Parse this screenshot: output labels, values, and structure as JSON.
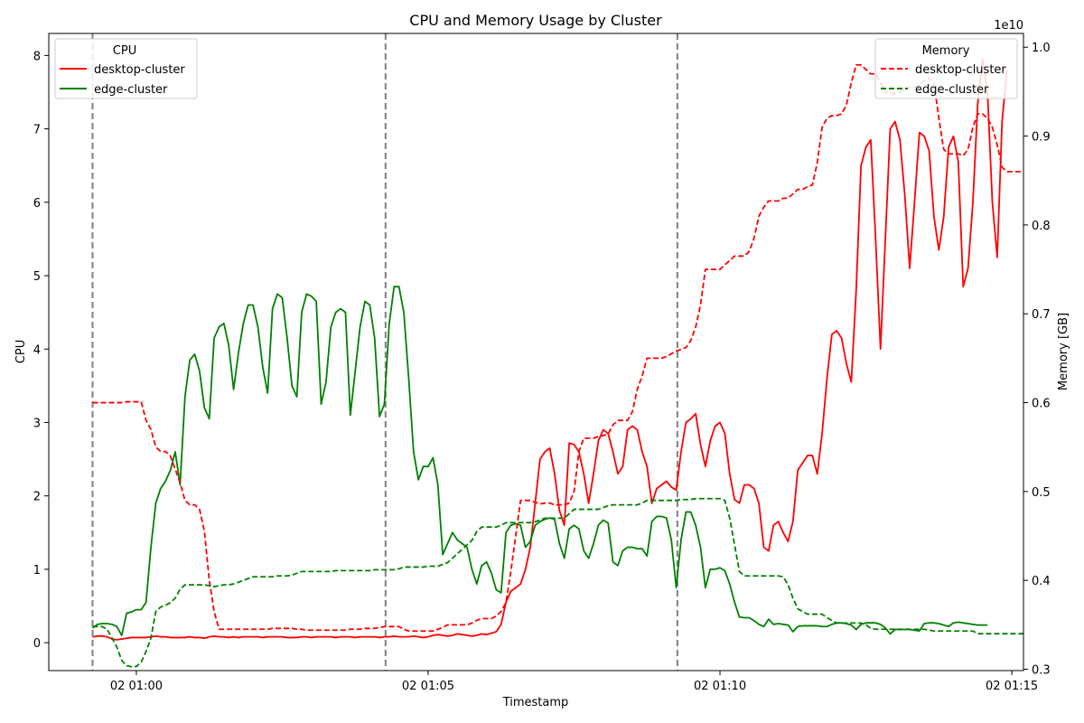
{
  "chart_data": {
    "type": "line",
    "title": "CPU and Memory Usage by Cluster",
    "xlabel": "Timestamp",
    "ylabel_left": "CPU",
    "ylabel_right": "Memory [GB]",
    "right_axis_offset_label": "1e10",
    "x_start": "02 00:59:15",
    "x_step_seconds": 5,
    "xlim_minutes": [
      -1.5,
      15.2
    ],
    "ylim_left": [
      -0.38,
      8.3
    ],
    "ylim_right": [
      0.2985,
      1.0155
    ],
    "x_ticks": [
      {
        "minute": 0,
        "label": "02 01:00"
      },
      {
        "minute": 5,
        "label": "02 01:05"
      },
      {
        "minute": 10,
        "label": "02 01:10"
      },
      {
        "minute": 15,
        "label": "02 01:15"
      }
    ],
    "y_ticks_left": [
      0,
      1,
      2,
      3,
      4,
      5,
      6,
      7,
      8
    ],
    "y_ticks_right": [
      0.3,
      0.4,
      0.5,
      0.6,
      0.7,
      0.8,
      0.9,
      1.0
    ],
    "vlines_minutes": [
      -0.75,
      4.27,
      9.27
    ],
    "colors": {
      "desktop": "#ff0000",
      "edge": "#008000",
      "vline": "#808080"
    },
    "legend_cpu": {
      "title": "CPU",
      "placement": "top-left",
      "entries": [
        "desktop-cluster",
        "edge-cluster"
      ]
    },
    "legend_memory": {
      "title": "Memory",
      "placement": "top-right",
      "entries": [
        "desktop-cluster",
        "edge-cluster"
      ]
    },
    "series": [
      {
        "name": "desktop-cluster",
        "axis": "CPU",
        "style": "solid",
        "color": "#ff0000",
        "values": [
          0.08,
          0.09,
          0.09,
          0.08,
          0.05,
          0.04,
          0.05,
          0.06,
          0.07,
          0.07,
          0.07,
          0.07,
          0.08,
          0.09,
          0.08,
          0.08,
          0.07,
          0.07,
          0.07,
          0.07,
          0.08,
          0.07,
          0.07,
          0.06,
          0.08,
          0.09,
          0.08,
          0.08,
          0.07,
          0.08,
          0.07,
          0.08,
          0.08,
          0.08,
          0.08,
          0.07,
          0.08,
          0.08,
          0.08,
          0.08,
          0.07,
          0.07,
          0.07,
          0.08,
          0.08,
          0.07,
          0.08,
          0.08,
          0.08,
          0.08,
          0.07,
          0.08,
          0.08,
          0.08,
          0.07,
          0.08,
          0.08,
          0.08,
          0.08,
          0.07,
          0.08,
          0.08,
          0.09,
          0.08,
          0.08,
          0.08,
          0.09,
          0.08,
          0.07,
          0.08,
          0.1,
          0.11,
          0.1,
          0.09,
          0.1,
          0.12,
          0.11,
          0.1,
          0.09,
          0.1,
          0.12,
          0.11,
          0.13,
          0.15,
          0.25,
          0.55,
          0.7,
          0.75,
          0.8,
          1.0,
          1.3,
          1.9,
          2.5,
          2.6,
          2.65,
          2.3,
          1.8,
          1.6,
          2.72,
          2.7,
          2.6,
          2.3,
          1.9,
          2.3,
          2.75,
          2.9,
          2.85,
          2.6,
          2.3,
          2.4,
          2.9,
          2.95,
          2.9,
          2.6,
          2.4,
          1.9,
          2.1,
          2.15,
          2.2,
          2.12,
          2.08,
          2.6,
          3.0,
          3.05,
          3.12,
          2.7,
          2.4,
          2.75,
          2.95,
          3.0,
          2.85,
          2.3,
          1.95,
          1.9,
          2.15,
          2.15,
          2.1,
          1.9,
          1.3,
          1.25,
          1.6,
          1.65,
          1.5,
          1.38,
          1.65,
          2.35,
          2.45,
          2.55,
          2.55,
          2.3,
          2.85,
          3.6,
          4.2,
          4.25,
          4.15,
          3.8,
          3.55,
          4.8,
          6.5,
          6.75,
          6.85,
          5.5,
          4.0,
          5.5,
          7.0,
          7.1,
          6.85,
          6.1,
          5.1,
          6.0,
          6.95,
          6.9,
          6.7,
          5.8,
          5.35,
          5.8,
          6.75,
          6.9,
          6.55,
          4.85,
          5.1,
          6.0,
          7.35,
          7.95,
          7.5,
          6.0,
          5.25,
          7.1,
          7.8
        ]
      },
      {
        "name": "edge-cluster",
        "axis": "CPU",
        "style": "solid",
        "color": "#008000",
        "values": [
          0.2,
          0.25,
          0.26,
          0.26,
          0.25,
          0.22,
          0.1,
          0.4,
          0.42,
          0.45,
          0.45,
          0.55,
          1.3,
          1.9,
          2.1,
          2.2,
          2.35,
          2.6,
          2.15,
          3.35,
          3.85,
          3.93,
          3.7,
          3.2,
          3.05,
          4.15,
          4.3,
          4.35,
          4.05,
          3.45,
          3.95,
          4.35,
          4.6,
          4.6,
          4.3,
          3.75,
          3.4,
          4.55,
          4.75,
          4.7,
          4.15,
          3.5,
          3.35,
          4.5,
          4.75,
          4.72,
          4.65,
          3.25,
          3.55,
          4.3,
          4.5,
          4.55,
          4.5,
          3.1,
          3.7,
          4.3,
          4.65,
          4.6,
          4.15,
          3.08,
          3.25,
          4.35,
          4.85,
          4.85,
          4.5,
          3.6,
          2.6,
          2.22,
          2.4,
          2.4,
          2.52,
          2.15,
          1.2,
          1.35,
          1.5,
          1.4,
          1.35,
          1.3,
          1.0,
          0.8,
          1.05,
          1.1,
          0.95,
          0.72,
          0.68,
          1.5,
          1.6,
          1.62,
          1.6,
          1.3,
          1.38,
          1.6,
          1.65,
          1.68,
          1.7,
          1.68,
          1.35,
          1.15,
          1.55,
          1.6,
          1.55,
          1.25,
          1.15,
          1.35,
          1.6,
          1.67,
          1.63,
          1.1,
          1.05,
          1.25,
          1.3,
          1.3,
          1.28,
          1.28,
          1.18,
          1.65,
          1.72,
          1.72,
          1.7,
          1.4,
          0.75,
          1.4,
          1.78,
          1.78,
          1.6,
          1.3,
          0.75,
          1.0,
          1.0,
          1.02,
          0.98,
          0.8,
          0.55,
          0.35,
          0.34,
          0.34,
          0.3,
          0.25,
          0.22,
          0.32,
          0.25,
          0.26,
          0.25,
          0.24,
          0.15,
          0.22,
          0.23,
          0.23,
          0.23,
          0.23,
          0.22,
          0.22,
          0.25,
          0.27,
          0.27,
          0.26,
          0.24,
          0.18,
          0.25,
          0.27,
          0.27,
          0.27,
          0.25,
          0.2,
          0.12,
          0.18,
          0.18,
          0.18,
          0.18,
          0.17,
          0.16,
          0.26,
          0.27,
          0.27,
          0.26,
          0.24,
          0.22,
          0.27,
          0.28,
          0.27,
          0.26,
          0.25,
          0.24,
          0.24,
          0.24
        ]
      },
      {
        "name": "desktop-cluster",
        "axis": "Memory",
        "style": "dashed",
        "color": "#ff0000",
        "values": [
          0.6,
          0.6,
          0.6,
          0.6,
          0.6,
          0.6,
          0.6,
          0.601,
          0.601,
          0.601,
          0.601,
          0.58,
          0.57,
          0.55,
          0.545,
          0.545,
          0.54,
          0.525,
          0.51,
          0.49,
          0.485,
          0.485,
          0.48,
          0.455,
          0.4,
          0.365,
          0.345,
          0.345,
          0.345,
          0.345,
          0.345,
          0.345,
          0.345,
          0.345,
          0.345,
          0.345,
          0.345,
          0.346,
          0.346,
          0.346,
          0.346,
          0.346,
          0.345,
          0.345,
          0.344,
          0.344,
          0.344,
          0.344,
          0.344,
          0.344,
          0.344,
          0.344,
          0.344,
          0.345,
          0.345,
          0.345,
          0.346,
          0.346,
          0.346,
          0.347,
          0.348,
          0.348,
          0.348,
          0.348,
          0.345,
          0.343,
          0.343,
          0.343,
          0.343,
          0.343,
          0.343,
          0.345,
          0.347,
          0.35,
          0.35,
          0.35,
          0.35,
          0.35,
          0.352,
          0.355,
          0.357,
          0.357,
          0.357,
          0.36,
          0.365,
          0.375,
          0.41,
          0.45,
          0.49,
          0.49,
          0.49,
          0.488,
          0.486,
          0.487,
          0.487,
          0.485,
          0.485,
          0.485,
          0.487,
          0.5,
          0.545,
          0.56,
          0.56,
          0.56,
          0.562,
          0.563,
          0.565,
          0.575,
          0.58,
          0.58,
          0.58,
          0.59,
          0.615,
          0.63,
          0.65,
          0.65,
          0.65,
          0.65,
          0.652,
          0.655,
          0.658,
          0.66,
          0.662,
          0.67,
          0.685,
          0.71,
          0.75,
          0.75,
          0.75,
          0.75,
          0.755,
          0.76,
          0.765,
          0.765,
          0.765,
          0.77,
          0.785,
          0.81,
          0.82,
          0.827,
          0.827,
          0.827,
          0.83,
          0.83,
          0.835,
          0.84,
          0.84,
          0.843,
          0.845,
          0.87,
          0.91,
          0.92,
          0.923,
          0.923,
          0.925,
          0.935,
          0.96,
          0.98,
          0.98,
          0.975,
          0.97,
          0.97,
          0.96,
          0.95,
          0.948,
          0.948,
          0.95,
          0.952,
          0.955,
          0.955,
          0.958,
          0.962,
          0.965,
          0.96,
          0.92,
          0.885,
          0.88,
          0.88,
          0.88,
          0.878,
          0.885,
          0.91,
          0.925,
          0.925,
          0.92,
          0.91,
          0.89,
          0.865,
          0.86,
          0.86,
          0.86,
          0.86,
          0.86,
          0.86,
          0.86,
          0.862
        ]
      },
      {
        "name": "edge-cluster",
        "axis": "Memory",
        "style": "dashed",
        "color": "#008000",
        "values": [
          0.348,
          0.348,
          0.348,
          0.345,
          0.335,
          0.325,
          0.31,
          0.304,
          0.303,
          0.303,
          0.308,
          0.32,
          0.335,
          0.365,
          0.37,
          0.372,
          0.375,
          0.38,
          0.39,
          0.395,
          0.395,
          0.395,
          0.395,
          0.395,
          0.394,
          0.393,
          0.394,
          0.395,
          0.395,
          0.396,
          0.398,
          0.4,
          0.402,
          0.404,
          0.404,
          0.404,
          0.404,
          0.404,
          0.405,
          0.405,
          0.405,
          0.406,
          0.408,
          0.41,
          0.41,
          0.41,
          0.41,
          0.41,
          0.41,
          0.41,
          0.411,
          0.411,
          0.411,
          0.411,
          0.411,
          0.411,
          0.411,
          0.411,
          0.412,
          0.412,
          0.412,
          0.412,
          0.412,
          0.413,
          0.415,
          0.415,
          0.415,
          0.415,
          0.415,
          0.416,
          0.416,
          0.416,
          0.418,
          0.42,
          0.425,
          0.43,
          0.435,
          0.44,
          0.445,
          0.455,
          0.46,
          0.46,
          0.46,
          0.46,
          0.462,
          0.465,
          0.465,
          0.465,
          0.465,
          0.465,
          0.465,
          0.466,
          0.468,
          0.47,
          0.47,
          0.47,
          0.47,
          0.47,
          0.475,
          0.48,
          0.48,
          0.48,
          0.48,
          0.48,
          0.48,
          0.482,
          0.484,
          0.485,
          0.485,
          0.485,
          0.485,
          0.485,
          0.485,
          0.487,
          0.49,
          0.49,
          0.49,
          0.49,
          0.49,
          0.49,
          0.49,
          0.491,
          0.491,
          0.491,
          0.492,
          0.492,
          0.492,
          0.492,
          0.492,
          0.492,
          0.49,
          0.47,
          0.44,
          0.41,
          0.405,
          0.405,
          0.405,
          0.405,
          0.405,
          0.405,
          0.405,
          0.405,
          0.404,
          0.395,
          0.38,
          0.368,
          0.365,
          0.362,
          0.362,
          0.362,
          0.362,
          0.358,
          0.355,
          0.352,
          0.352,
          0.352,
          0.352,
          0.352,
          0.352,
          0.35,
          0.346,
          0.345,
          0.345,
          0.345,
          0.345,
          0.345,
          0.345,
          0.345,
          0.345,
          0.345,
          0.345,
          0.345,
          0.344,
          0.343,
          0.343,
          0.343,
          0.343,
          0.343,
          0.343,
          0.343,
          0.343,
          0.343,
          0.34,
          0.34,
          0.34,
          0.34,
          0.34,
          0.34,
          0.34,
          0.34,
          0.34,
          0.34,
          0.34,
          0.34
        ]
      }
    ]
  }
}
